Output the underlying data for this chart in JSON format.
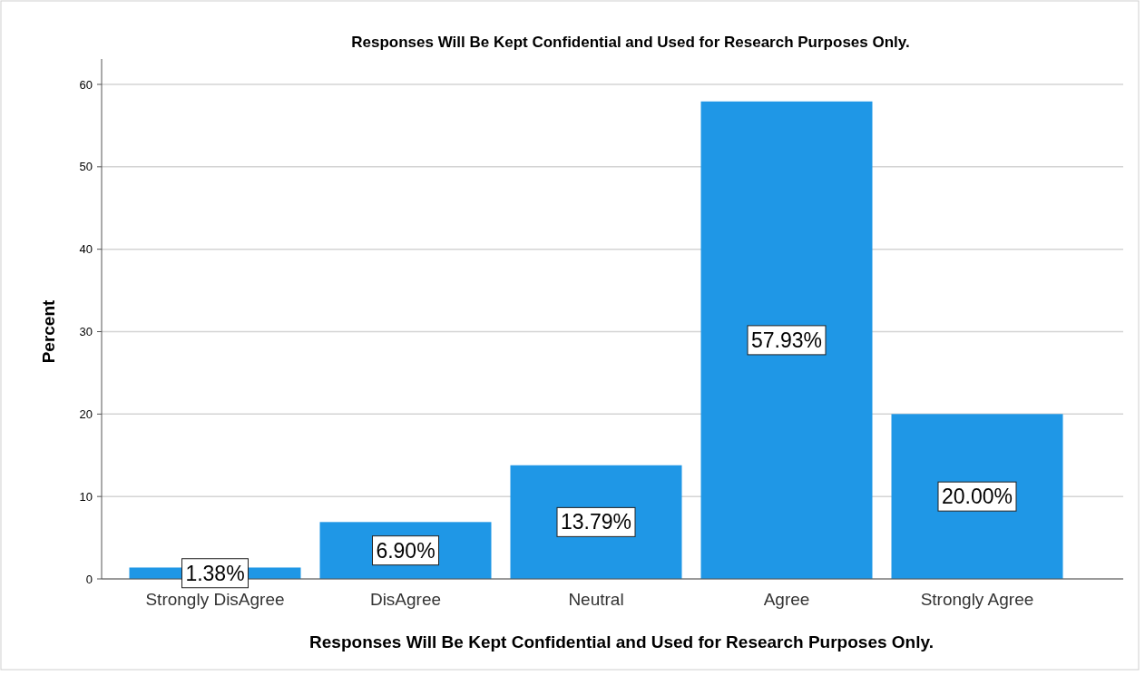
{
  "chart_data": {
    "type": "bar",
    "title": "Responses Will Be Kept Confidential and Used for Research Purposes Only.",
    "xlabel": "Responses Will Be Kept Confidential and Used for Research Purposes Only.",
    "ylabel": "Percent",
    "categories": [
      "Strongly DisAgree",
      "DisAgree",
      "Neutral",
      "Agree",
      "Strongly Agree"
    ],
    "values": [
      1.38,
      6.9,
      13.79,
      57.93,
      20.0
    ],
    "value_labels": [
      "1.38%",
      "6.90%",
      "13.79%",
      "57.93%",
      "20.00%"
    ],
    "color": "#1f97e6",
    "ylim": [
      0,
      60
    ],
    "yticks": [
      0,
      10,
      20,
      30,
      40,
      50,
      60
    ],
    "grid": "y"
  }
}
